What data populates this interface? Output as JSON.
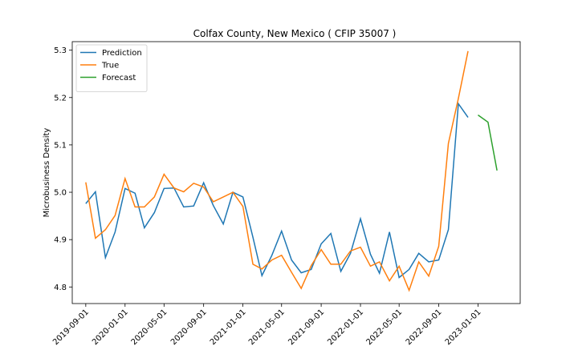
{
  "chart_data": {
    "type": "line",
    "title": "Colfax County, New Mexico ( CFIP 35007 )",
    "xlabel": "",
    "ylabel": "Microbusiness Density",
    "xlim": [
      "2019-07-21",
      "2023-05-12"
    ],
    "ylim": [
      4.765,
      5.318
    ],
    "grid": false,
    "legend_position": "top-left",
    "x_ticks": [
      "2019-09-01",
      "2020-01-01",
      "2020-05-01",
      "2020-09-01",
      "2021-01-01",
      "2021-05-01",
      "2021-09-01",
      "2022-01-01",
      "2022-05-01",
      "2022-09-01",
      "2023-01-01"
    ],
    "y_ticks": [
      4.8,
      4.9,
      5.0,
      5.1,
      5.2,
      5.3
    ],
    "y_tick_labels": [
      "4.8",
      "4.9",
      "5.0",
      "5.1",
      "5.2",
      "5.3"
    ],
    "series": [
      {
        "name": "Prediction",
        "color": "#1f77b4",
        "x": [
          "2019-09-01",
          "2019-10-01",
          "2019-11-01",
          "2019-12-01",
          "2020-01-01",
          "2020-02-01",
          "2020-03-01",
          "2020-04-01",
          "2020-05-01",
          "2020-06-01",
          "2020-07-01",
          "2020-08-01",
          "2020-09-01",
          "2020-10-01",
          "2020-11-01",
          "2020-12-01",
          "2021-01-01",
          "2021-02-01",
          "2021-03-01",
          "2021-04-01",
          "2021-05-01",
          "2021-06-01",
          "2021-07-01",
          "2021-08-01",
          "2021-09-01",
          "2021-10-01",
          "2021-11-01",
          "2021-12-01",
          "2022-01-01",
          "2022-02-01",
          "2022-03-01",
          "2022-04-01",
          "2022-05-01",
          "2022-06-01",
          "2022-07-01",
          "2022-08-01",
          "2022-09-01",
          "2022-10-01",
          "2022-11-01",
          "2022-12-01"
        ],
        "values": [
          4.976,
          5.001,
          4.862,
          4.916,
          5.008,
          4.998,
          4.925,
          4.957,
          5.008,
          5.009,
          4.969,
          4.971,
          5.02,
          4.972,
          4.933,
          5.0,
          4.99,
          4.905,
          4.824,
          4.867,
          4.918,
          4.857,
          4.83,
          4.837,
          4.891,
          4.913,
          4.833,
          4.871,
          4.944,
          4.869,
          4.829,
          4.916,
          4.82,
          4.837,
          4.871,
          4.853,
          4.857,
          4.921,
          5.187,
          5.158
        ]
      },
      {
        "name": "True",
        "color": "#ff7f0e",
        "x": [
          "2019-09-01",
          "2019-10-01",
          "2019-11-01",
          "2019-12-01",
          "2020-01-01",
          "2020-02-01",
          "2020-03-01",
          "2020-04-01",
          "2020-05-01",
          "2020-06-01",
          "2020-07-01",
          "2020-08-01",
          "2020-09-01",
          "2020-10-01",
          "2020-11-01",
          "2020-12-01",
          "2021-01-01",
          "2021-02-01",
          "2021-03-01",
          "2021-04-01",
          "2021-05-01",
          "2021-06-01",
          "2021-07-01",
          "2021-08-01",
          "2021-09-01",
          "2021-10-01",
          "2021-11-01",
          "2021-12-01",
          "2022-01-01",
          "2022-02-01",
          "2022-03-01",
          "2022-04-01",
          "2022-05-01",
          "2022-06-01",
          "2022-07-01",
          "2022-08-01",
          "2022-09-01",
          "2022-10-01",
          "2022-11-01",
          "2022-12-01"
        ],
        "values": [
          5.021,
          4.903,
          4.921,
          4.951,
          5.029,
          4.969,
          4.969,
          4.99,
          5.038,
          5.009,
          5.001,
          5.019,
          5.011,
          4.98,
          4.99,
          5.0,
          4.97,
          4.848,
          4.838,
          4.857,
          4.867,
          4.831,
          4.797,
          4.845,
          4.879,
          4.848,
          4.848,
          4.876,
          4.884,
          4.844,
          4.853,
          4.813,
          4.844,
          4.793,
          4.853,
          4.823,
          4.886,
          5.103,
          5.198,
          5.298
        ]
      },
      {
        "name": "Forecast",
        "color": "#2ca02c",
        "x": [
          "2023-01-01",
          "2023-02-01",
          "2023-03-01"
        ],
        "values": [
          5.163,
          5.148,
          5.046
        ]
      }
    ]
  }
}
